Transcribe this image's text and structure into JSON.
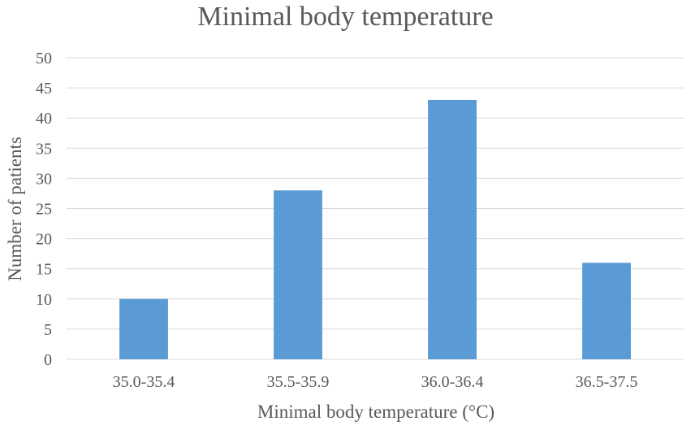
{
  "chart_data": {
    "type": "bar",
    "title": "Minimal body temperature",
    "xlabel": "Minimal body temperature (°C)",
    "ylabel": "Number of patients",
    "categories": [
      "35.0-35.4",
      "35.5-35.9",
      "36.0-36.4",
      "36.5-37.5"
    ],
    "values": [
      10,
      28,
      43,
      16
    ],
    "ylim": [
      0,
      50
    ],
    "yticks": [
      "0",
      "5",
      "10",
      "15",
      "20",
      "25",
      "30",
      "35",
      "40",
      "45",
      "50"
    ],
    "grid": true,
    "legend": "none",
    "bar_color": "#5b9bd5",
    "grid_color": "#d9d9d9"
  }
}
